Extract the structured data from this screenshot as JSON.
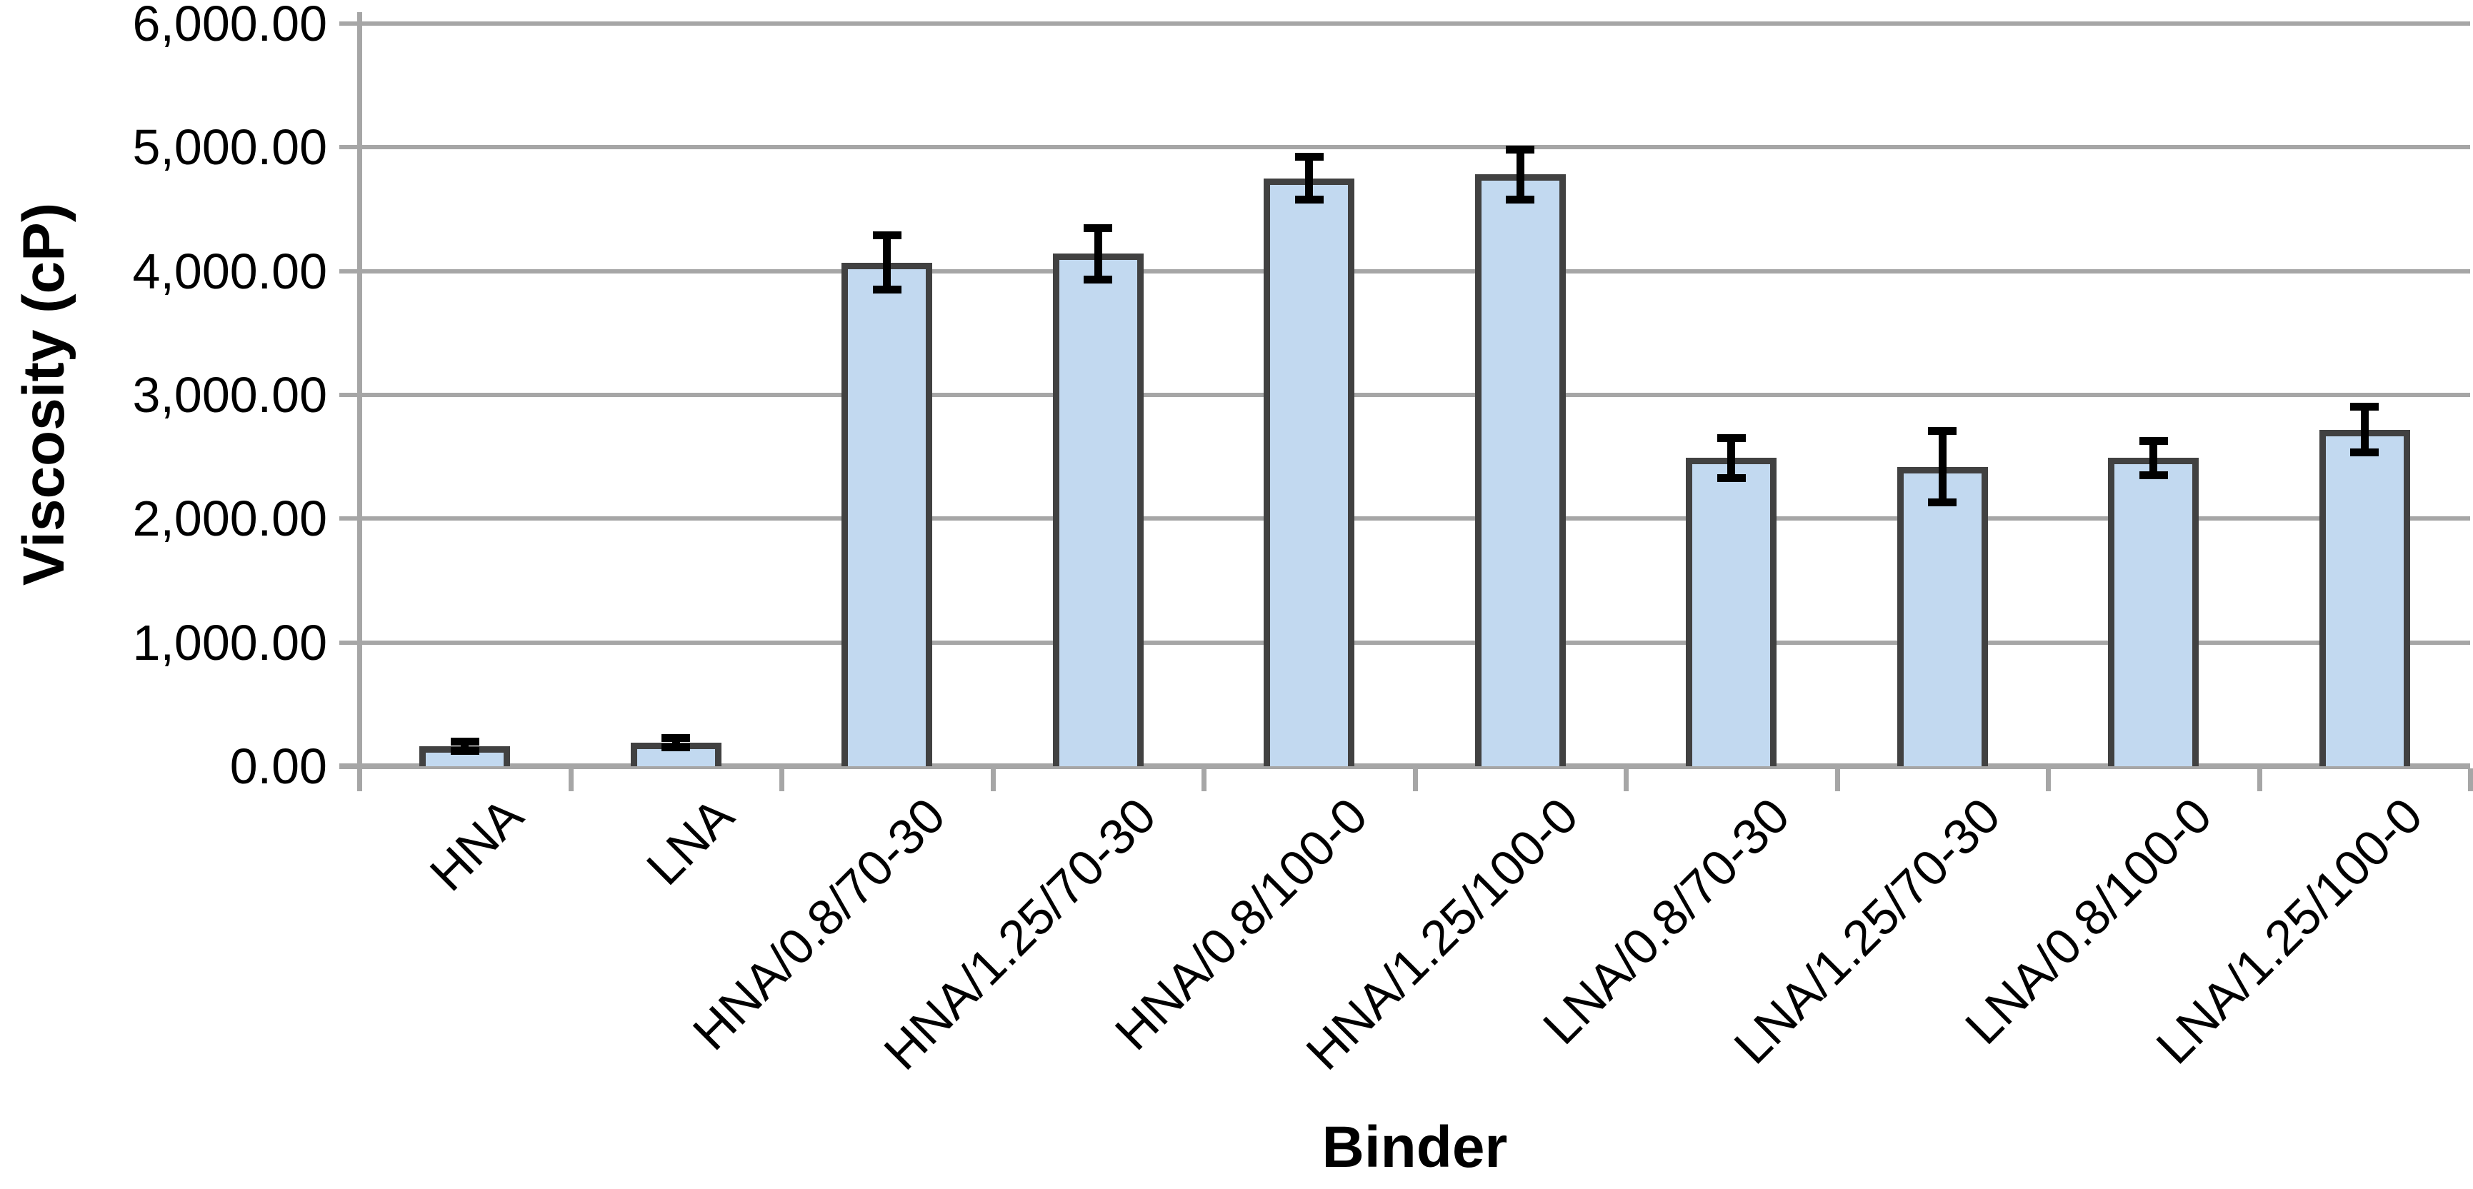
{
  "chart_data": {
    "type": "bar",
    "title": "",
    "xlabel": "Binder",
    "ylabel": "Viscosity (cP)",
    "ylim": [
      0,
      6000
    ],
    "ytick_step": 1000,
    "ytick_values": [
      0,
      1000,
      2000,
      3000,
      4000,
      5000,
      6000
    ],
    "ytick_labels": [
      "0.00",
      "1,000.00",
      "2,000.00",
      "3,000.00",
      "4,000.00",
      "5,000.00",
      "6,000.00"
    ],
    "categories": [
      "HNA",
      "LNA",
      "HNA/0.8/70-30",
      "HNA/1.25/70-30",
      "HNA/0.8/100-0",
      "HNA/1.25/100-0",
      "LNA/0.8/70-30",
      "LNA/1.25/70-30",
      "LNA/0.8/100-0",
      "LNA/1.25/100-0"
    ],
    "values": [
      160,
      190,
      4070,
      4140,
      4750,
      4780,
      2490,
      2420,
      2490,
      2720
    ],
    "error_bars": [
      40,
      40,
      220,
      210,
      175,
      205,
      165,
      290,
      140,
      190
    ],
    "grid": true,
    "legend": false,
    "colors": {
      "bar_fill": "#C2D9F0",
      "bar_border": "#414141",
      "error_bar": "#000000",
      "gridline": "#A6A6A6",
      "axis_line": "#A6A6A6",
      "text": "#000000",
      "background": "#FFFFFF"
    }
  }
}
